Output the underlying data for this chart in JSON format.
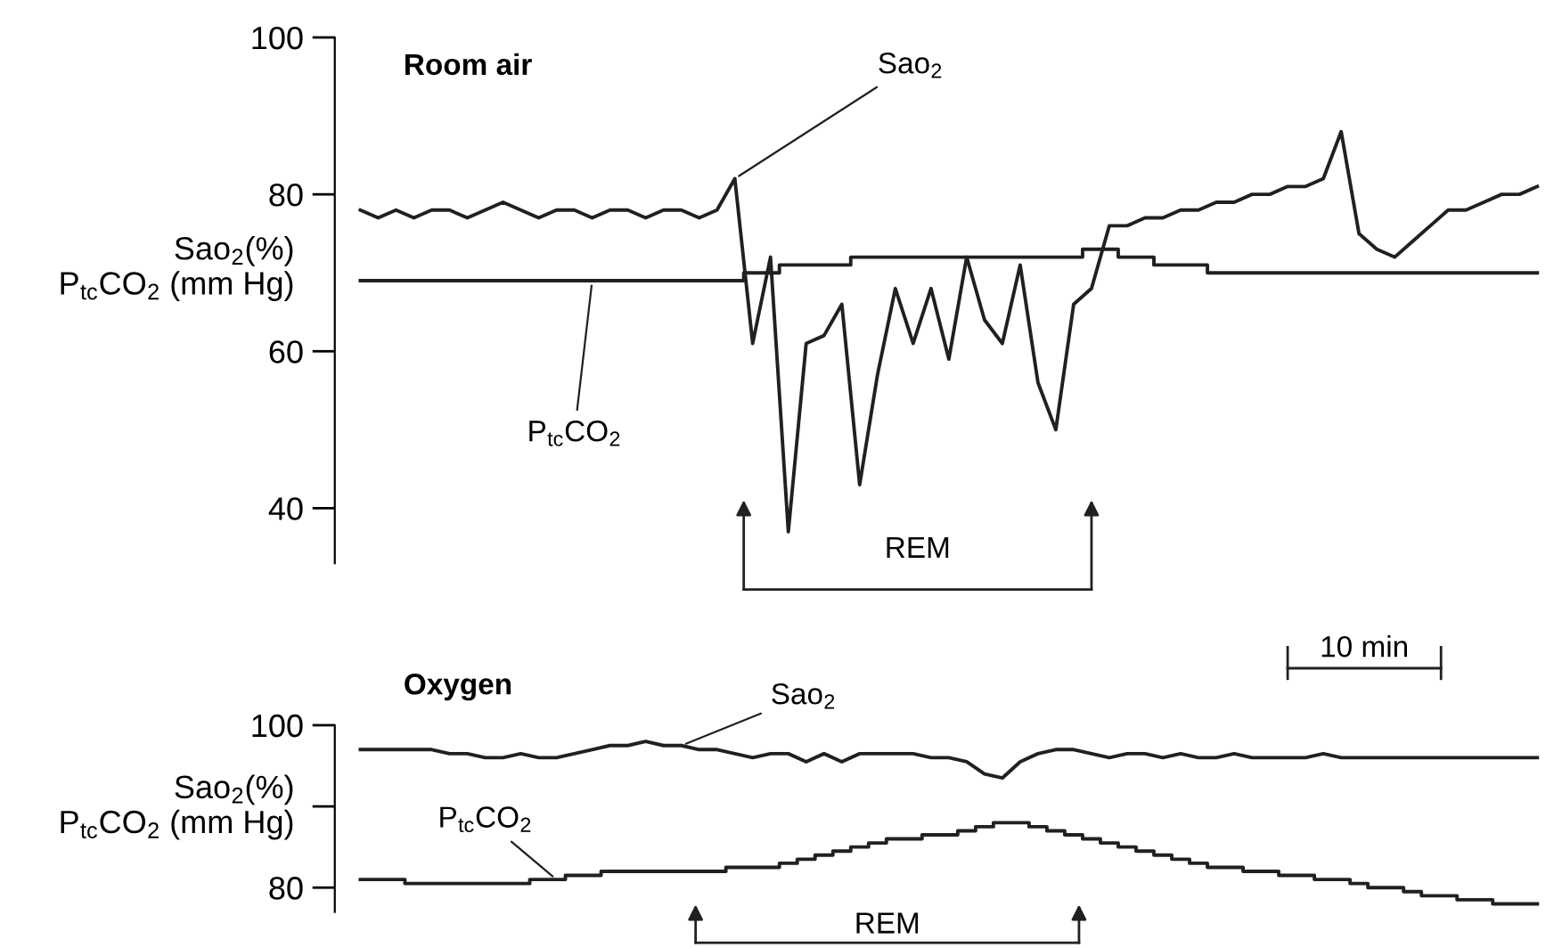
{
  "chart_data": [
    {
      "type": "line",
      "title": "Room air",
      "ylabel": "Sao$_{2}$(%)\nP$_{tc}$CO$_{2}$ (mm Hg)",
      "categories": [
        null,
        null,
        null,
        null,
        null,
        null,
        null,
        null,
        null,
        null,
        null,
        null,
        null,
        null,
        null,
        null,
        null,
        null,
        null,
        null,
        null,
        null,
        null,
        null,
        null,
        null,
        null,
        null,
        null,
        null,
        null,
        null,
        null,
        null,
        null,
        null,
        null,
        null,
        null,
        null,
        null,
        null,
        null,
        null,
        null,
        null,
        null,
        null,
        null,
        null,
        null,
        null,
        null,
        null,
        null,
        null,
        null,
        null,
        null,
        null,
        null,
        null,
        null,
        null,
        null,
        null,
        null
      ],
      "series": [
        {
          "name": "Sao$_{2}$",
          "type": "line",
          "color": "#231f20",
          "values": [
            78,
            77,
            78,
            77,
            78,
            78,
            77,
            78,
            79,
            78,
            77,
            78,
            78,
            77,
            78,
            78,
            77,
            78,
            78,
            77,
            78,
            82,
            61,
            72,
            37,
            61,
            62,
            66,
            43,
            57,
            68,
            61,
            68,
            59,
            72,
            64,
            61,
            71,
            56,
            50,
            66,
            68,
            76,
            76,
            77,
            77,
            78,
            78,
            79,
            79,
            80,
            80,
            81,
            81,
            82,
            88,
            75,
            73,
            72,
            74,
            76,
            78,
            78,
            79,
            80,
            80,
            81
          ]
        },
        {
          "name": "P$_{tc}$CO$_{2}$",
          "type": "step",
          "color": "#231f20",
          "values": [
            69,
            69,
            69,
            69,
            69,
            69,
            69,
            69,
            69,
            69,
            69,
            69,
            69,
            69,
            69,
            69,
            69,
            69,
            69,
            69,
            69,
            69,
            70,
            70,
            71,
            71,
            71,
            71,
            72,
            72,
            72,
            72,
            72,
            72,
            72,
            72,
            72,
            72,
            72,
            72,
            72,
            73,
            73,
            72,
            72,
            71,
            71,
            71,
            70,
            70,
            70,
            70,
            70,
            70,
            70,
            70,
            70,
            70,
            70,
            70,
            70,
            70,
            70,
            70,
            70,
            70,
            70
          ]
        }
      ],
      "ylim": [
        33,
        100
      ],
      "yticks": [
        40,
        60,
        80,
        100
      ],
      "tick_labels": "y",
      "annotations": [
        "REM",
        "10 min"
      ]
    },
    {
      "type": "line",
      "title": "Oxygen",
      "ylabel": "Sao$_{2}$(%)\nP$_{tc}$CO$_{2}$ (mm Hg)",
      "categories": [
        null,
        null,
        null,
        null,
        null,
        null,
        null,
        null,
        null,
        null,
        null,
        null,
        null,
        null,
        null,
        null,
        null,
        null,
        null,
        null,
        null,
        null,
        null,
        null,
        null,
        null,
        null,
        null,
        null,
        null,
        null,
        null,
        null,
        null,
        null,
        null,
        null,
        null,
        null,
        null,
        null,
        null,
        null,
        null,
        null,
        null,
        null,
        null,
        null,
        null,
        null,
        null,
        null,
        null,
        null,
        null,
        null,
        null,
        null,
        null,
        null,
        null,
        null,
        null,
        null,
        null,
        null
      ],
      "series": [
        {
          "name": "Sao$_{2}$",
          "type": "line",
          "color": "#231f20",
          "values": [
            97,
            97,
            97,
            97,
            97,
            96.5,
            96.5,
            96,
            96,
            96.5,
            96,
            96,
            96.5,
            97,
            97.5,
            97.5,
            98,
            97.5,
            97.5,
            97,
            97,
            96.5,
            96,
            96.5,
            96.5,
            95.5,
            96.5,
            95.5,
            96.5,
            96.5,
            96.5,
            96.5,
            96,
            96,
            95.5,
            94,
            93.5,
            95.5,
            96.5,
            97,
            97,
            96.5,
            96,
            96.5,
            96.5,
            96,
            96.5,
            96,
            96,
            96.5,
            96,
            96,
            96,
            96,
            96.5,
            96,
            96,
            96,
            96,
            96,
            96,
            96,
            96,
            96,
            96,
            96,
            96
          ]
        },
        {
          "name": "P$_{tc}$CO$_{2}$",
          "type": "step",
          "color": "#231f20",
          "values": [
            81,
            81,
            81,
            80.5,
            80.5,
            80.5,
            80.5,
            80.5,
            80.5,
            80.5,
            81,
            81,
            81.5,
            81.5,
            82,
            82,
            82,
            82,
            82,
            82,
            82,
            82.5,
            82.5,
            82.5,
            83,
            83.5,
            84,
            84.5,
            85,
            85.5,
            86,
            86,
            86.5,
            86.5,
            87,
            87.5,
            88,
            88,
            87.5,
            87,
            86.5,
            86,
            85.5,
            85,
            84.5,
            84,
            83.5,
            83,
            82.5,
            82.5,
            82,
            82,
            81.5,
            81.5,
            81,
            81,
            80.5,
            80,
            80,
            79.5,
            79,
            79,
            78.5,
            78.5,
            78,
            78,
            78
          ]
        }
      ],
      "ylim": [
        77,
        100
      ],
      "yticks": [
        80,
        {
          "value": 90,
          "label": null
        },
        100
      ],
      "tick_labels": "y",
      "annotations": [
        "REM"
      ]
    }
  ]
}
